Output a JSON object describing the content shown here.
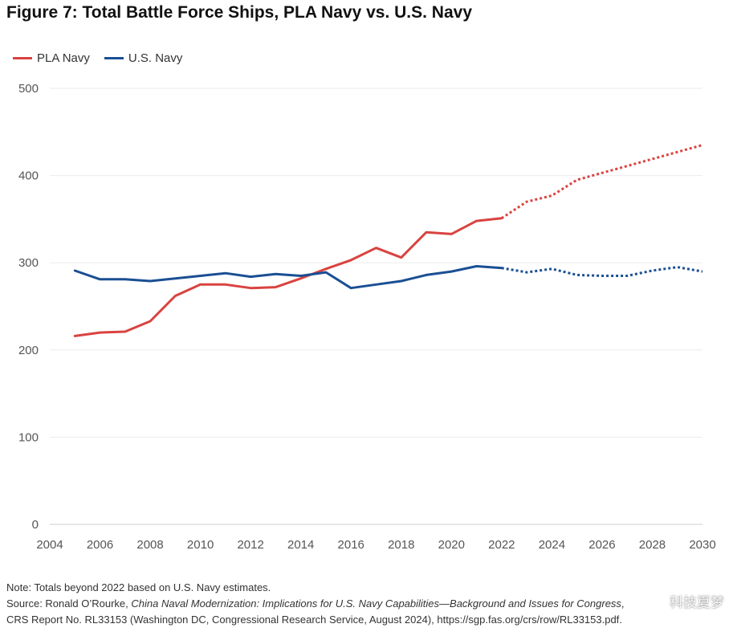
{
  "title": "Figure 7: Total Battle Force Ships, PLA Navy vs. U.S. Navy",
  "legend": [
    "PLA Navy",
    "U.S. Navy"
  ],
  "chart_data": {
    "type": "line",
    "title": "Figure 7: Total Battle Force Ships, PLA Navy vs. U.S. Navy",
    "xlabel": "",
    "ylabel": "",
    "xlim": [
      2004,
      2030
    ],
    "ylim": [
      0,
      500
    ],
    "x_ticks": [
      "2004",
      "2006",
      "2008",
      "2010",
      "2012",
      "2014",
      "2016",
      "2018",
      "2020",
      "2022",
      "2024",
      "2026",
      "2028",
      "2030"
    ],
    "y_ticks": [
      "0",
      "100",
      "200",
      "300",
      "400",
      "500"
    ],
    "grid": "horizontal",
    "legend_position": "top-left",
    "estimate_from": 2022,
    "series": [
      {
        "name": "PLA Navy",
        "color": "#d9433f",
        "x": [
          2005,
          2006,
          2007,
          2008,
          2009,
          2010,
          2011,
          2012,
          2013,
          2014,
          2015,
          2016,
          2017,
          2018,
          2019,
          2020,
          2021,
          2022,
          2023,
          2024,
          2025,
          2026,
          2027,
          2028,
          2029,
          2030
        ],
        "y": [
          216,
          220,
          221,
          233,
          262,
          275,
          275,
          271,
          272,
          282,
          293,
          303,
          317,
          306,
          335,
          333,
          348,
          351,
          370,
          377,
          395,
          403,
          411,
          419,
          427,
          435
        ]
      },
      {
        "name": "U.S. Navy",
        "color": "#1a4f93",
        "x": [
          2005,
          2006,
          2007,
          2008,
          2009,
          2010,
          2011,
          2012,
          2013,
          2014,
          2015,
          2016,
          2017,
          2018,
          2019,
          2020,
          2021,
          2022,
          2023,
          2024,
          2025,
          2026,
          2027,
          2028,
          2029,
          2030
        ],
        "y": [
          291,
          281,
          281,
          279,
          282,
          285,
          288,
          284,
          287,
          285,
          289,
          271,
          275,
          279,
          286,
          290,
          296,
          294,
          289,
          293,
          286,
          285,
          285,
          291,
          295,
          290
        ]
      }
    ]
  },
  "notes": {
    "note": "Note: Totals beyond 2022 based on U.S. Navy estimates.",
    "source_prefix": "Source: Ronald O’Rourke, ",
    "source_title": "China Naval Modernization: Implications for U.S. Navy Capabilities—Background and Issues for Congress",
    "source_suffix": ",",
    "report": "CRS Report No. RL33153 (Washington DC, Congressional Research Service, August 2024), https://sgp.fas.org/crs/row/RL33153.pdf."
  },
  "watermark": "科技夏梦"
}
